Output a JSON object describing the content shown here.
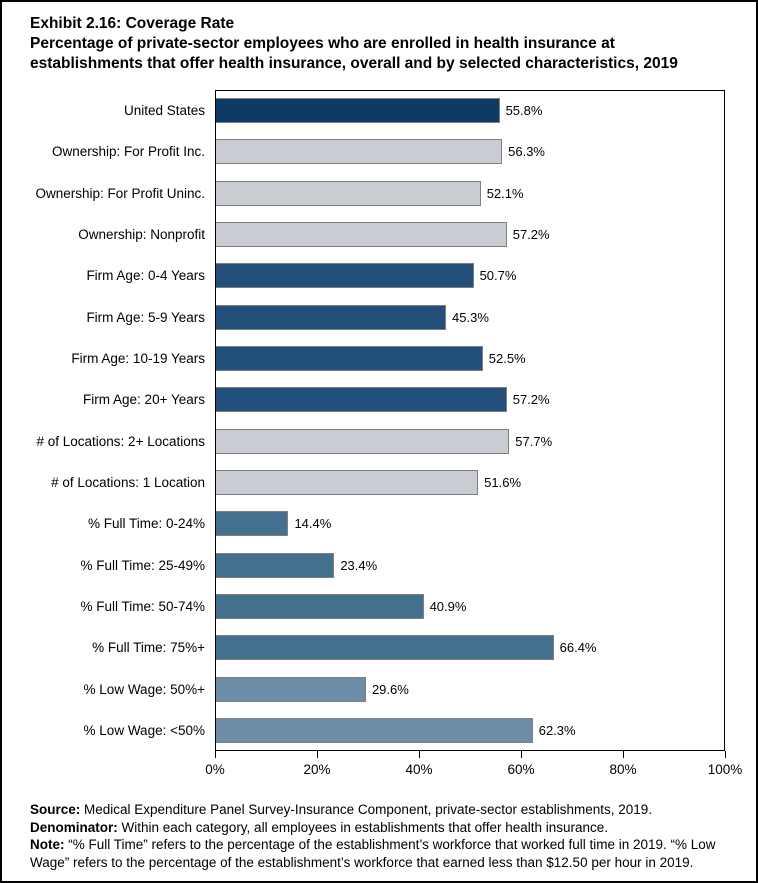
{
  "header": {
    "title": "Exhibit 2.16: Coverage Rate",
    "subtitle": "Percentage of private-sector employees who are enrolled in health insurance at establishments that offer health insurance, overall and by selected characteristics, 2019"
  },
  "chart_data": {
    "type": "bar",
    "orientation": "horizontal",
    "title": "Exhibit 2.16: Coverage Rate",
    "xlabel": "",
    "ylabel": "",
    "xlim": [
      0,
      100
    ],
    "x_tick_labels": [
      "0%",
      "20%",
      "40%",
      "60%",
      "80%",
      "100%"
    ],
    "grid": false,
    "legend": false,
    "categories": [
      "United States",
      "Ownership: For Profit Inc.",
      "Ownership: For Profit Uninc.",
      "Ownership: Nonprofit",
      "Firm Age: 0-4 Years",
      "Firm Age: 5-9 Years",
      "Firm Age: 10-19 Years",
      "Firm Age: 20+ Years",
      "# of Locations: 2+ Locations",
      "# of Locations: 1 Location",
      "% Full Time: 0-24%",
      "% Full Time: 25-49%",
      "% Full Time: 50-74%",
      "% Full Time: 75%+",
      "% Low Wage: 50%+",
      "% Low Wage: <50%"
    ],
    "values": [
      55.8,
      56.3,
      52.1,
      57.2,
      50.7,
      45.3,
      52.5,
      57.2,
      57.7,
      51.6,
      14.4,
      23.4,
      40.9,
      66.4,
      29.6,
      62.3
    ],
    "value_labels": [
      "55.8%",
      "56.3%",
      "52.1%",
      "57.2%",
      "50.7%",
      "45.3%",
      "52.5%",
      "57.2%",
      "57.7%",
      "51.6%",
      "14.4%",
      "23.4%",
      "40.9%",
      "66.4%",
      "29.6%",
      "62.3%"
    ],
    "bar_color_keys": [
      "navy",
      "gray",
      "gray",
      "gray",
      "blue",
      "blue",
      "blue",
      "blue",
      "gray",
      "gray",
      "steel",
      "steel",
      "steel",
      "steel",
      "slate",
      "slate"
    ],
    "palette": {
      "navy": "#0c3a64",
      "gray": "#c9ccd2",
      "blue": "#23507a",
      "steel": "#44708f",
      "slate": "#6d8ca7",
      "bar_border": "#7f7f7f"
    }
  },
  "footnotes": {
    "source_label": "Source:",
    "source_text": " Medical Expenditure Panel Survey-Insurance Component, private-sector establishments, 2019.",
    "denominator_label": "Denominator:",
    "denominator_text": " Within each category, all employees in establishments that offer health insurance.",
    "note_label": "Note:",
    "note_text": " “% Full Time” refers to the percentage of the establishment’s workforce that worked full time in 2019. “% Low Wage” refers to the percentage of the establishment’s workforce that earned less than $12.50 per hour in 2019."
  }
}
